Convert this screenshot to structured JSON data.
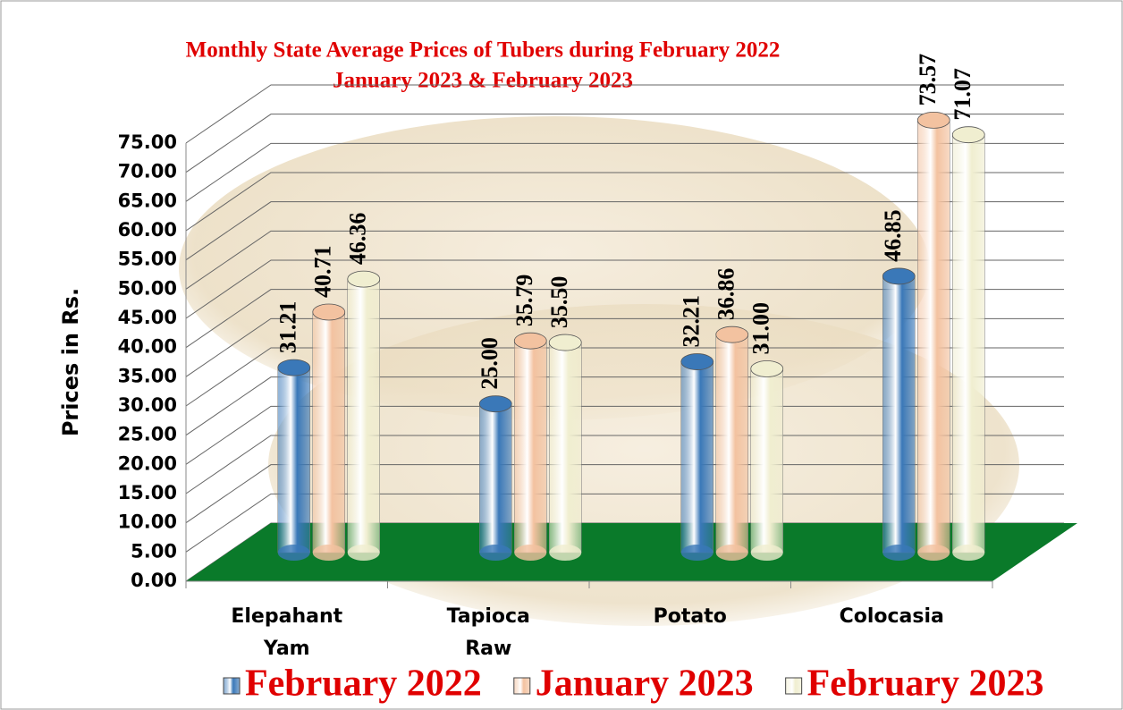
{
  "chart_data": {
    "type": "bar3d",
    "title_lines": [
      "Monthly State Average  Prices of Tubers during  February 2022",
      "January 2023  &  February 2023"
    ],
    "y_label": "Prices in Rs.",
    "categories": [
      "Elepahant Yam",
      "Tapioca Raw",
      "Potato",
      "Colocasia"
    ],
    "series": [
      {
        "name": "February 2022",
        "color": "#3a78b8",
        "values": [
          31.21,
          25,
          32.21,
          46.85
        ],
        "value_labels": [
          "31.21",
          "25.00",
          "32.21",
          "46.85"
        ]
      },
      {
        "name": "January 2023",
        "color": "#f3c2a0",
        "values": [
          40.71,
          35.79,
          36.86,
          73.57
        ],
        "value_labels": [
          "40.71",
          "35.79",
          "36.86",
          "73.57"
        ]
      },
      {
        "name": "February 2023",
        "color": "#f0eed0",
        "values": [
          46.36,
          35.5,
          31,
          71.07
        ],
        "value_labels": [
          "46.36",
          "35.50",
          "31.00",
          "71.07"
        ]
      }
    ],
    "ylim": [
      0,
      75
    ],
    "yticks": [
      {
        "value": 0,
        "label": "0.00"
      },
      {
        "value": 5,
        "label": "5.00"
      },
      {
        "value": 10,
        "label": "10.00"
      },
      {
        "value": 15,
        "label": "15.00"
      },
      {
        "value": 20,
        "label": "20.00"
      },
      {
        "value": 25,
        "label": "25.00"
      },
      {
        "value": 30,
        "label": "30.00"
      },
      {
        "value": 35,
        "label": "35.00"
      },
      {
        "value": 40,
        "label": "40.00"
      },
      {
        "value": 45,
        "label": "45.00"
      },
      {
        "value": 50,
        "label": "50.00"
      },
      {
        "value": 55,
        "label": "55.00"
      },
      {
        "value": 60,
        "label": "60.00"
      },
      {
        "value": 65,
        "label": "65.00"
      },
      {
        "value": 70,
        "label": "70.00"
      },
      {
        "value": 75,
        "label": "75.00"
      }
    ],
    "grid": true
  }
}
